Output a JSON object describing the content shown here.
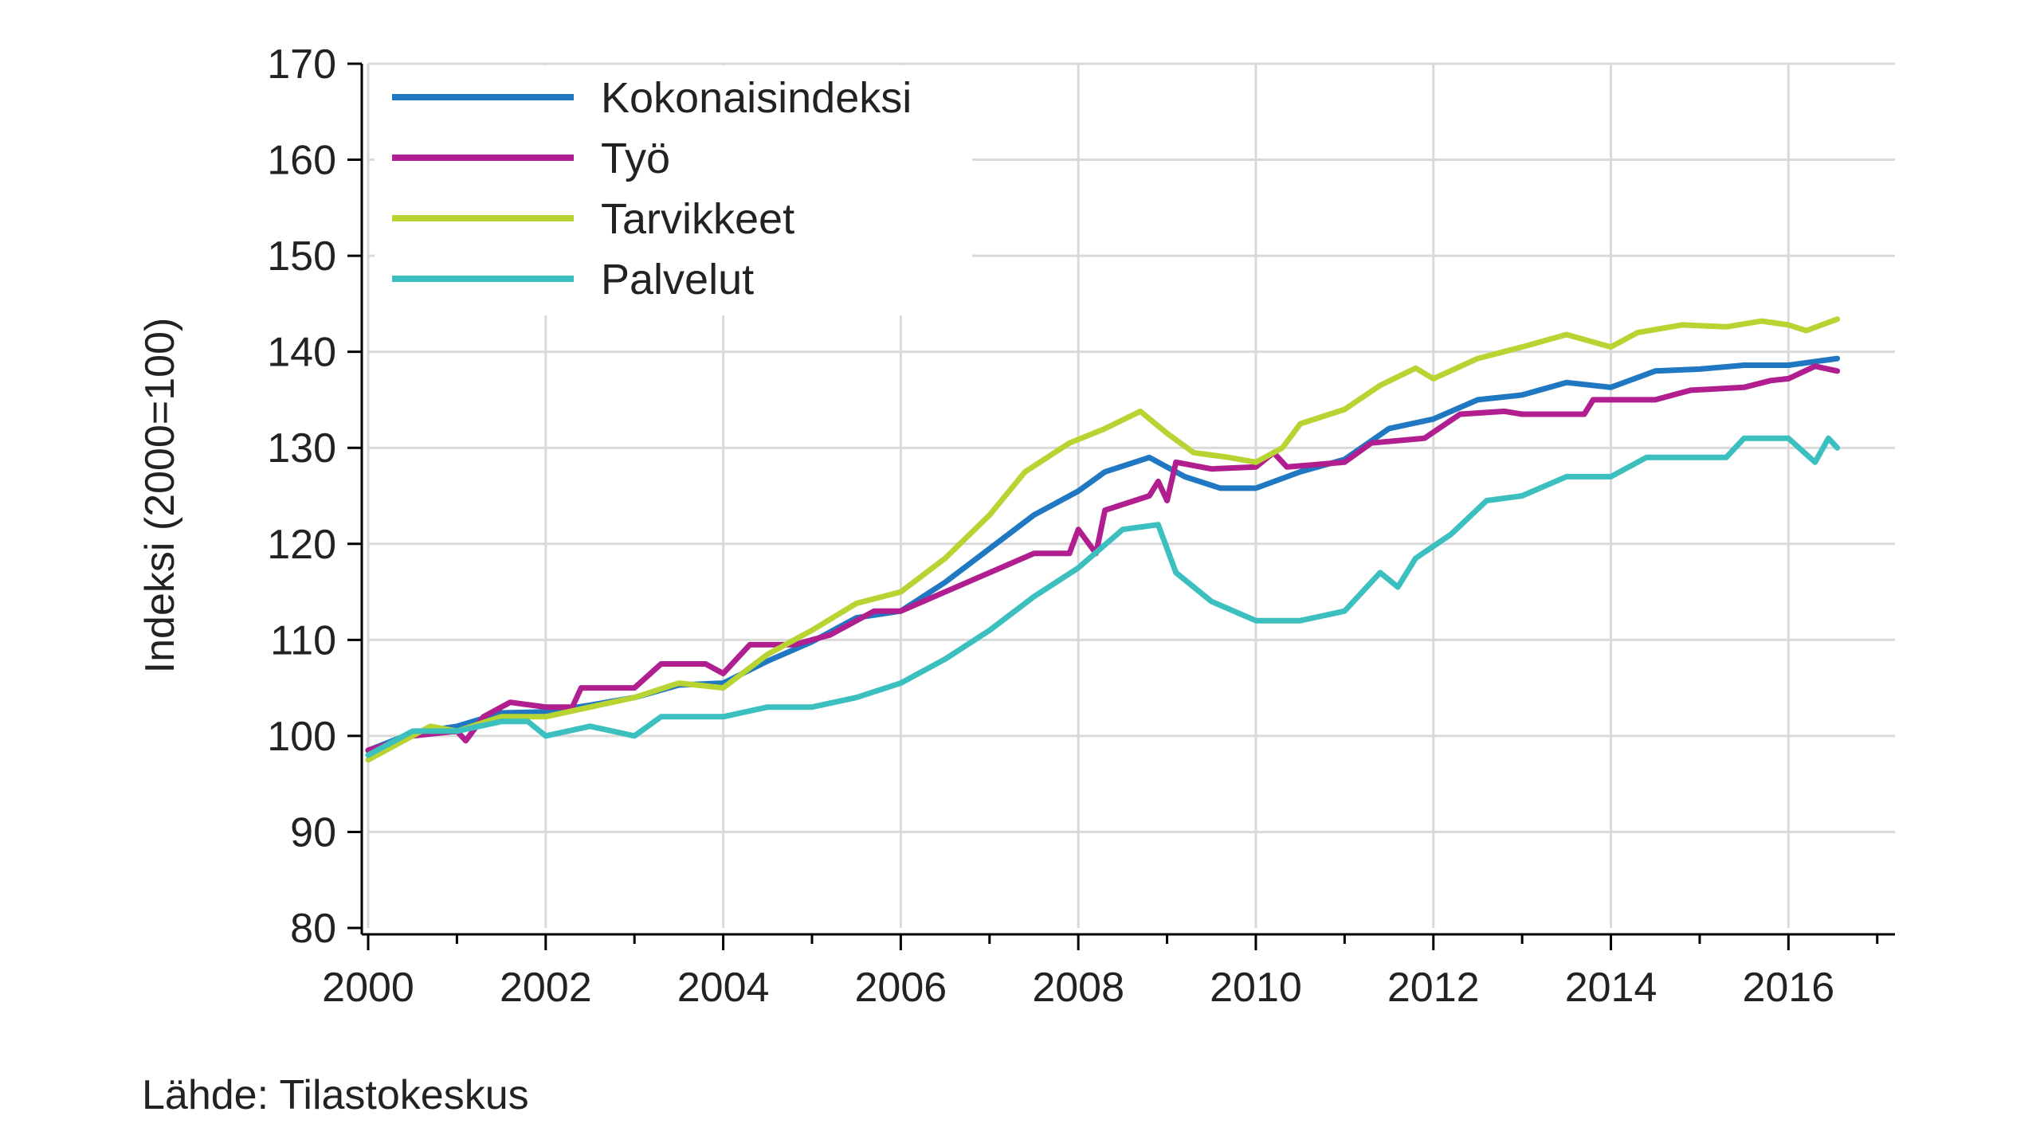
{
  "chart_data": {
    "type": "line",
    "title": "",
    "xlabel": "",
    "ylabel": "Indeksi (2000=100)",
    "source": "Lähde: Tilastokeskus",
    "xlim": [
      2000,
      2017.2
    ],
    "ylim": [
      80,
      170
    ],
    "x_ticks": [
      2000,
      2002,
      2004,
      2006,
      2008,
      2010,
      2012,
      2014,
      2016
    ],
    "y_ticks": [
      80,
      90,
      100,
      110,
      120,
      130,
      140,
      150,
      160,
      170
    ],
    "grid": true,
    "legend_position": "top-left",
    "series": [
      {
        "name": "Kokonaisindeksi",
        "color": "#1f78c1",
        "points": [
          [
            2000.0,
            98.5
          ],
          [
            2000.5,
            100.3
          ],
          [
            2001.0,
            101.0
          ],
          [
            2001.5,
            102.4
          ],
          [
            2002.0,
            102.5
          ],
          [
            2002.5,
            103.2
          ],
          [
            2003.0,
            104.0
          ],
          [
            2003.5,
            105.3
          ],
          [
            2004.0,
            105.5
          ],
          [
            2004.5,
            107.8
          ],
          [
            2005.0,
            109.8
          ],
          [
            2005.5,
            112.3
          ],
          [
            2006.0,
            113.0
          ],
          [
            2006.5,
            116.0
          ],
          [
            2007.0,
            119.5
          ],
          [
            2007.5,
            123.0
          ],
          [
            2008.0,
            125.5
          ],
          [
            2008.3,
            127.5
          ],
          [
            2008.8,
            129.0
          ],
          [
            2009.2,
            127.0
          ],
          [
            2009.6,
            125.8
          ],
          [
            2010.0,
            125.8
          ],
          [
            2010.5,
            127.5
          ],
          [
            2011.0,
            128.8
          ],
          [
            2011.5,
            132.0
          ],
          [
            2012.0,
            133.0
          ],
          [
            2012.5,
            135.0
          ],
          [
            2013.0,
            135.5
          ],
          [
            2013.5,
            136.8
          ],
          [
            2014.0,
            136.3
          ],
          [
            2014.5,
            138.0
          ],
          [
            2015.0,
            138.2
          ],
          [
            2015.5,
            138.6
          ],
          [
            2016.0,
            138.6
          ],
          [
            2016.55,
            139.3
          ]
        ]
      },
      {
        "name": "Työ",
        "color": "#b01e8f",
        "points": [
          [
            2000.0,
            98.5
          ],
          [
            2000.5,
            100.0
          ],
          [
            2001.0,
            100.5
          ],
          [
            2001.1,
            99.5
          ],
          [
            2001.3,
            102.0
          ],
          [
            2001.6,
            103.5
          ],
          [
            2002.0,
            103.0
          ],
          [
            2002.3,
            103.0
          ],
          [
            2002.4,
            105.0
          ],
          [
            2003.0,
            105.0
          ],
          [
            2003.3,
            107.5
          ],
          [
            2003.8,
            107.5
          ],
          [
            2004.0,
            106.5
          ],
          [
            2004.3,
            109.5
          ],
          [
            2004.8,
            109.5
          ],
          [
            2005.2,
            110.5
          ],
          [
            2005.7,
            113.0
          ],
          [
            2006.0,
            113.0
          ],
          [
            2006.5,
            115.0
          ],
          [
            2007.0,
            117.0
          ],
          [
            2007.5,
            119.0
          ],
          [
            2007.9,
            119.0
          ],
          [
            2008.0,
            121.5
          ],
          [
            2008.2,
            119.0
          ],
          [
            2008.3,
            123.5
          ],
          [
            2008.8,
            125.0
          ],
          [
            2008.9,
            126.5
          ],
          [
            2009.0,
            124.5
          ],
          [
            2009.1,
            128.5
          ],
          [
            2009.5,
            127.8
          ],
          [
            2010.0,
            128.0
          ],
          [
            2010.2,
            129.5
          ],
          [
            2010.35,
            128.0
          ],
          [
            2011.0,
            128.5
          ],
          [
            2011.3,
            130.5
          ],
          [
            2011.9,
            131.0
          ],
          [
            2012.3,
            133.5
          ],
          [
            2012.8,
            133.8
          ],
          [
            2013.0,
            133.5
          ],
          [
            2013.7,
            133.5
          ],
          [
            2013.8,
            135.0
          ],
          [
            2014.5,
            135.0
          ],
          [
            2014.9,
            136.0
          ],
          [
            2015.5,
            136.3
          ],
          [
            2015.8,
            137.0
          ],
          [
            2016.0,
            137.2
          ],
          [
            2016.3,
            138.5
          ],
          [
            2016.55,
            138.0
          ]
        ]
      },
      {
        "name": "Tarvikkeet",
        "color": "#b8d432",
        "points": [
          [
            2000.0,
            97.5
          ],
          [
            2000.3,
            99.0
          ],
          [
            2000.7,
            101.0
          ],
          [
            2001.0,
            100.5
          ],
          [
            2001.5,
            102.0
          ],
          [
            2002.0,
            102.0
          ],
          [
            2002.5,
            103.0
          ],
          [
            2003.0,
            104.0
          ],
          [
            2003.5,
            105.5
          ],
          [
            2004.0,
            105.0
          ],
          [
            2004.5,
            108.5
          ],
          [
            2005.0,
            111.0
          ],
          [
            2005.5,
            113.8
          ],
          [
            2006.0,
            115.0
          ],
          [
            2006.5,
            118.5
          ],
          [
            2007.0,
            123.0
          ],
          [
            2007.4,
            127.5
          ],
          [
            2007.9,
            130.5
          ],
          [
            2008.3,
            132.0
          ],
          [
            2008.7,
            133.8
          ],
          [
            2009.0,
            131.5
          ],
          [
            2009.3,
            129.5
          ],
          [
            2009.7,
            129.0
          ],
          [
            2010.0,
            128.5
          ],
          [
            2010.3,
            130.0
          ],
          [
            2010.5,
            132.5
          ],
          [
            2011.0,
            134.0
          ],
          [
            2011.4,
            136.5
          ],
          [
            2011.8,
            138.3
          ],
          [
            2012.0,
            137.2
          ],
          [
            2012.5,
            139.3
          ],
          [
            2013.0,
            140.5
          ],
          [
            2013.5,
            141.8
          ],
          [
            2014.0,
            140.5
          ],
          [
            2014.3,
            142.0
          ],
          [
            2014.8,
            142.8
          ],
          [
            2015.3,
            142.6
          ],
          [
            2015.7,
            143.2
          ],
          [
            2016.0,
            142.8
          ],
          [
            2016.2,
            142.2
          ],
          [
            2016.55,
            143.4
          ]
        ]
      },
      {
        "name": "Palvelut",
        "color": "#3cbfbf",
        "points": [
          [
            2000.0,
            98.0
          ],
          [
            2000.5,
            100.5
          ],
          [
            2001.0,
            100.5
          ],
          [
            2001.5,
            101.5
          ],
          [
            2001.8,
            101.5
          ],
          [
            2002.0,
            100.0
          ],
          [
            2002.5,
            101.0
          ],
          [
            2003.0,
            100.0
          ],
          [
            2003.3,
            102.0
          ],
          [
            2004.0,
            102.0
          ],
          [
            2004.5,
            103.0
          ],
          [
            2005.0,
            103.0
          ],
          [
            2005.5,
            104.0
          ],
          [
            2006.0,
            105.5
          ],
          [
            2006.5,
            108.0
          ],
          [
            2007.0,
            111.0
          ],
          [
            2007.5,
            114.5
          ],
          [
            2008.0,
            117.5
          ],
          [
            2008.5,
            121.5
          ],
          [
            2008.9,
            122.0
          ],
          [
            2009.1,
            117.0
          ],
          [
            2009.5,
            114.0
          ],
          [
            2010.0,
            112.0
          ],
          [
            2010.5,
            112.0
          ],
          [
            2011.0,
            113.0
          ],
          [
            2011.4,
            117.0
          ],
          [
            2011.6,
            115.5
          ],
          [
            2011.8,
            118.5
          ],
          [
            2012.2,
            121.0
          ],
          [
            2012.6,
            124.5
          ],
          [
            2013.0,
            125.0
          ],
          [
            2013.5,
            127.0
          ],
          [
            2014.0,
            127.0
          ],
          [
            2014.4,
            129.0
          ],
          [
            2015.0,
            129.0
          ],
          [
            2015.3,
            129.0
          ],
          [
            2015.5,
            131.0
          ],
          [
            2016.0,
            131.0
          ],
          [
            2016.3,
            128.5
          ],
          [
            2016.45,
            131.0
          ],
          [
            2016.55,
            130.0
          ]
        ]
      }
    ]
  }
}
